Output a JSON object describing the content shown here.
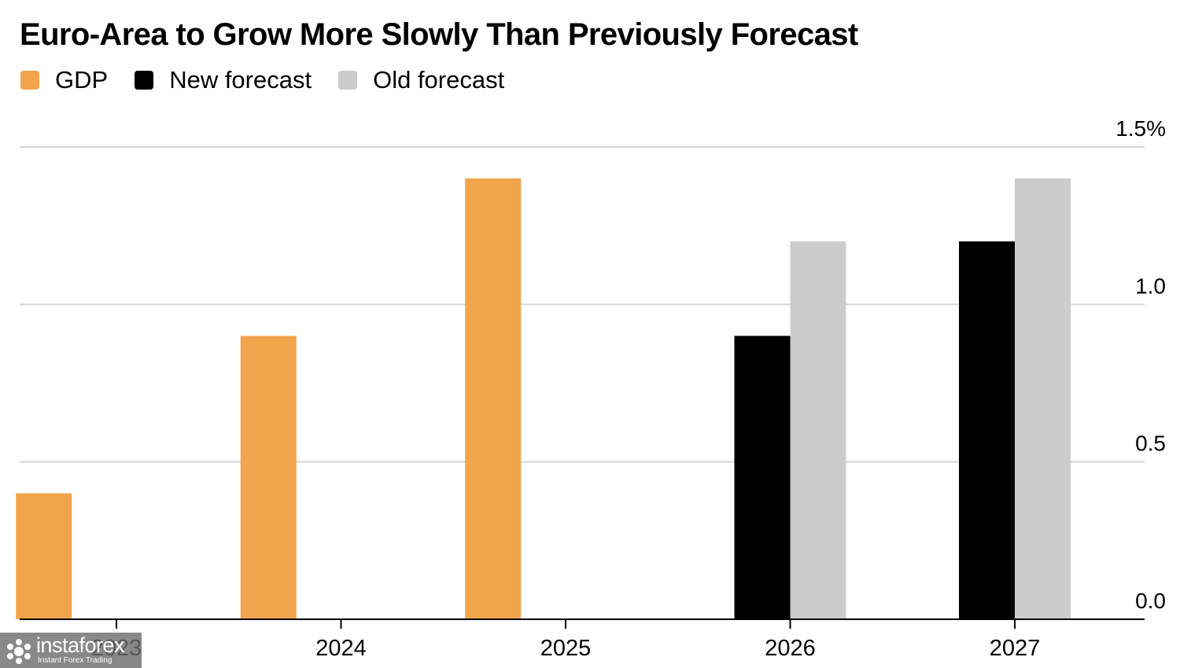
{
  "chart_data": {
    "type": "bar",
    "title": "Euro-Area to Grow More Slowly Than Previously Forecast",
    "categories": [
      "2023",
      "2024",
      "2025",
      "2026",
      "2027"
    ],
    "series": [
      {
        "name": "GDP",
        "color": "#F0A44B",
        "values": [
          0.4,
          0.9,
          1.4,
          null,
          null
        ]
      },
      {
        "name": "New forecast",
        "color": "#000000",
        "values": [
          null,
          null,
          null,
          0.9,
          1.2
        ]
      },
      {
        "name": "Old forecast",
        "color": "#CCCCCC",
        "values": [
          null,
          null,
          null,
          1.2,
          1.4
        ]
      }
    ],
    "yticks": [
      "0.0",
      "0.5",
      "1.0",
      "1.5%"
    ],
    "ylim": [
      0,
      1.5
    ],
    "y_axis_side": "right",
    "grid": true,
    "legend_position": "top-left"
  },
  "watermark": {
    "name": "instaforex",
    "tagline": "Instant Forex Trading"
  }
}
